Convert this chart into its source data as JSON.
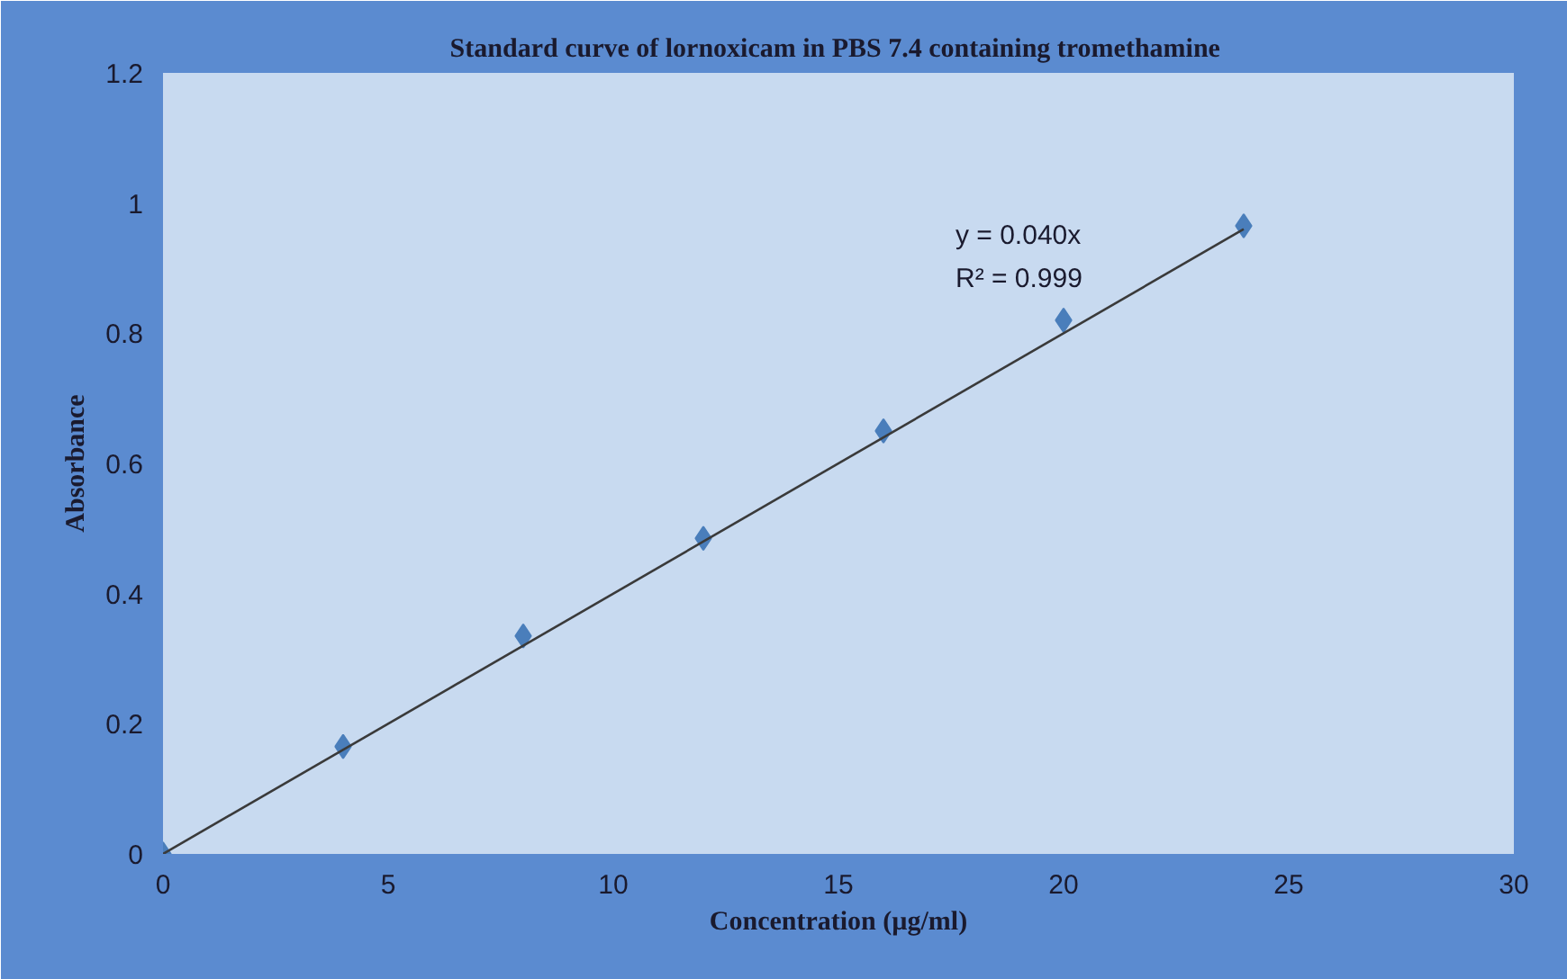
{
  "chart_data": {
    "type": "scatter",
    "title": "Standard  curve of lornoxicam in PBS 7.4 containing tromethamine",
    "xlabel": "Concentration (µg/ml)",
    "ylabel": "Absorbance",
    "x": [
      0,
      4,
      8,
      12,
      16,
      20,
      24
    ],
    "series": [
      {
        "color": "#4a7ebb",
        "marker": "diamond",
        "values": [
          0,
          0.165,
          0.335,
          0.485,
          0.65,
          0.82,
          0.965
        ]
      },
      {
        "type": "line",
        "color": "#3a3a3a",
        "marker": "none",
        "line_style": "solid",
        "x": [
          0,
          24
        ],
        "values": [
          0,
          0.96
        ]
      }
    ],
    "annotations": [
      "y = 0.040x",
      "R² = 0.999"
    ],
    "xlim": [
      0,
      30
    ],
    "xticks": [
      0,
      5,
      10,
      15,
      20,
      25,
      30
    ],
    "ylim": [
      0,
      1.2
    ],
    "yticks": [
      0,
      0.2,
      0.4,
      0.6,
      0.8,
      1,
      1.2
    ],
    "grid": false
  }
}
